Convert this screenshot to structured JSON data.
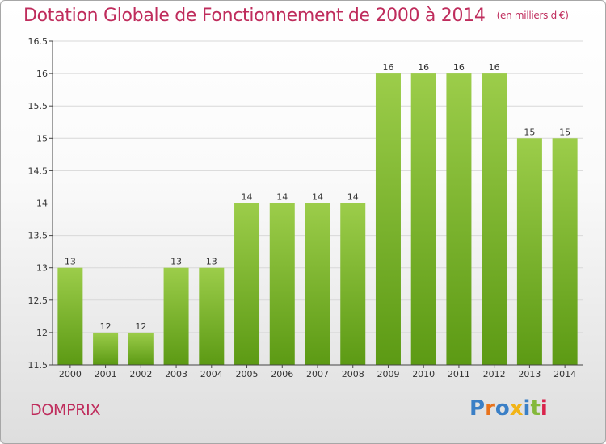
{
  "chart": {
    "title": "Dotation Globale de Fonctionnement de 2000 à 2014",
    "subtitle": "(en milliers d'€)",
    "commune": "DOMPRIX",
    "logo": [
      "P",
      "r",
      "o",
      "x",
      "i",
      "t",
      "i"
    ]
  },
  "colors": {
    "title": "#bf2c5c",
    "bar_light": "#9ccd4a",
    "bar_dark": "#5c9a14",
    "grid": "#d8d8d8",
    "axis": "#444444",
    "logo": [
      "#3a7fc6",
      "#e8731c",
      "#3a7fc6",
      "#f2b417",
      "#3a7fc6",
      "#84b83a",
      "#d9234b"
    ]
  },
  "chart_data": {
    "type": "bar",
    "title": "Dotation Globale de Fonctionnement de 2000 à 2014",
    "subtitle": "(en milliers d'€)",
    "xlabel": "",
    "ylabel": "",
    "categories": [
      "2000",
      "2001",
      "2002",
      "2003",
      "2004",
      "2005",
      "2006",
      "2007",
      "2008",
      "2009",
      "2010",
      "2011",
      "2012",
      "2013",
      "2014"
    ],
    "values": [
      13,
      12,
      12,
      13,
      13,
      14,
      14,
      14,
      14,
      16,
      16,
      16,
      16,
      15,
      15
    ],
    "data_labels": [
      "13",
      "12",
      "12",
      "13",
      "13",
      "14",
      "14",
      "14",
      "14",
      "16",
      "16",
      "16",
      "16",
      "15",
      "15"
    ],
    "ylim": [
      11.5,
      16.5
    ],
    "yticks": [
      11.5,
      12,
      12.5,
      13,
      13.5,
      14,
      14.5,
      15,
      15.5,
      16,
      16.5
    ],
    "ytick_labels": [
      "11.5",
      "12",
      "12.5",
      "13",
      "13.5",
      "14",
      "14.5",
      "15",
      "15.5",
      "16",
      "16.5"
    ],
    "grid": true,
    "legend": "none"
  }
}
